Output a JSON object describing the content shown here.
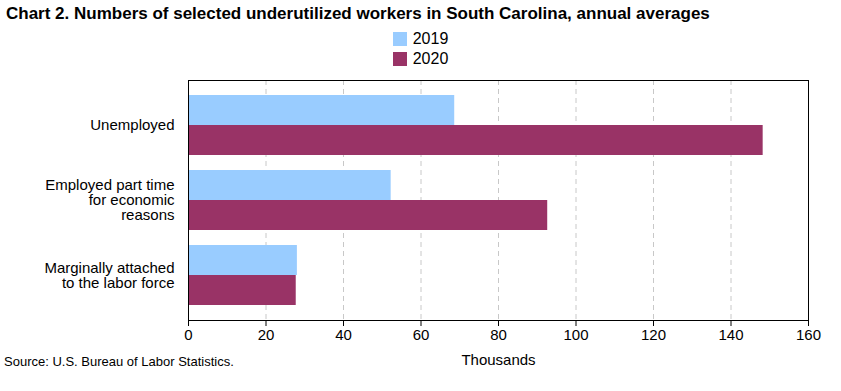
{
  "chart_data": {
    "type": "bar",
    "orientation": "horizontal",
    "title": "Chart 2. Numbers of selected underutilized workers in South Carolina, annual averages",
    "xlabel": "Thousands",
    "caption": "Source: U.S. Bureau of Labor Statistics.",
    "categories": [
      "Unemployed",
      "Employed part time for economic reasons",
      "Marginally attached to the labor force"
    ],
    "series": [
      {
        "name": "2019",
        "color": "#99ccff",
        "values": [
          68.7,
          52.3,
          28.1
        ]
      },
      {
        "name": "2020",
        "color": "#993366",
        "values": [
          148.3,
          92.7,
          27.8
        ]
      }
    ],
    "xlim": [
      0,
      160
    ],
    "xticks": [
      0,
      20,
      40,
      60,
      80,
      100,
      120,
      140,
      160
    ],
    "grid": true,
    "legend": "top"
  }
}
